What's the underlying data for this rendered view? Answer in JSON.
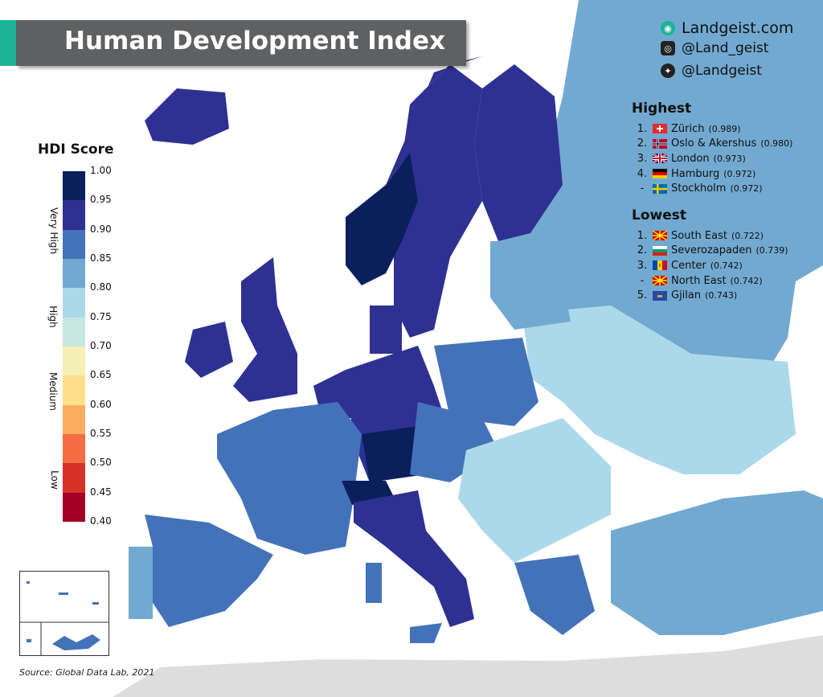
{
  "title": "Human Development Index",
  "social": {
    "website": "Landgeist.com",
    "instagram": "@Land_geist",
    "twitter": "@Landgeist",
    "website_icon": "globe-logo-icon",
    "instagram_icon": "instagram-icon",
    "twitter_icon": "twitter-icon"
  },
  "legend": {
    "title": "HDI Score",
    "ticks": [
      "1.00",
      "0.95",
      "0.90",
      "0.85",
      "0.80",
      "0.75",
      "0.70",
      "0.65",
      "0.60",
      "0.55",
      "0.50",
      "0.45",
      "0.40"
    ],
    "colors": [
      "#0b1f5c",
      "#2e3192",
      "#4472b8",
      "#72a9d0",
      "#abd9e9",
      "#c7e6df",
      "#f3efb5",
      "#fddf8b",
      "#fdad60",
      "#f46d43",
      "#d73027",
      "#a50026"
    ],
    "bands": [
      "Very High",
      "High",
      "Medium",
      "Low"
    ]
  },
  "highest": {
    "title": "Highest",
    "items": [
      {
        "rank": "1.",
        "name": "Zürich",
        "value": "(0.989)",
        "flag": "switzerland"
      },
      {
        "rank": "2.",
        "name": "Oslo & Akershus",
        "value": "(0.980)",
        "flag": "norway"
      },
      {
        "rank": "3.",
        "name": "London",
        "value": "(0.973)",
        "flag": "united-kingdom"
      },
      {
        "rank": "4.",
        "name": "Hamburg",
        "value": "(0.972)",
        "flag": "germany"
      },
      {
        "rank": "-",
        "name": "Stockholm",
        "value": "(0.972)",
        "flag": "sweden"
      }
    ]
  },
  "lowest": {
    "title": "Lowest",
    "items": [
      {
        "rank": "1.",
        "name": "South East",
        "value": "(0.722)",
        "flag": "north-macedonia"
      },
      {
        "rank": "2.",
        "name": "Severozapaden",
        "value": "(0.739)",
        "flag": "bulgaria"
      },
      {
        "rank": "3.",
        "name": "Center",
        "value": "(0.742)",
        "flag": "moldova"
      },
      {
        "rank": "-",
        "name": "North East",
        "value": "(0.742)",
        "flag": "north-macedonia"
      },
      {
        "rank": "5.",
        "name": "Gjilan",
        "value": "(0.743)",
        "flag": "kosovo"
      }
    ]
  },
  "source": "Source: Global Data Lab, 2021",
  "colors": {
    "sea": "#ffffff",
    "no_data_land": "#dddddd",
    "banner": "#5f6062",
    "accent": "#1db495"
  }
}
